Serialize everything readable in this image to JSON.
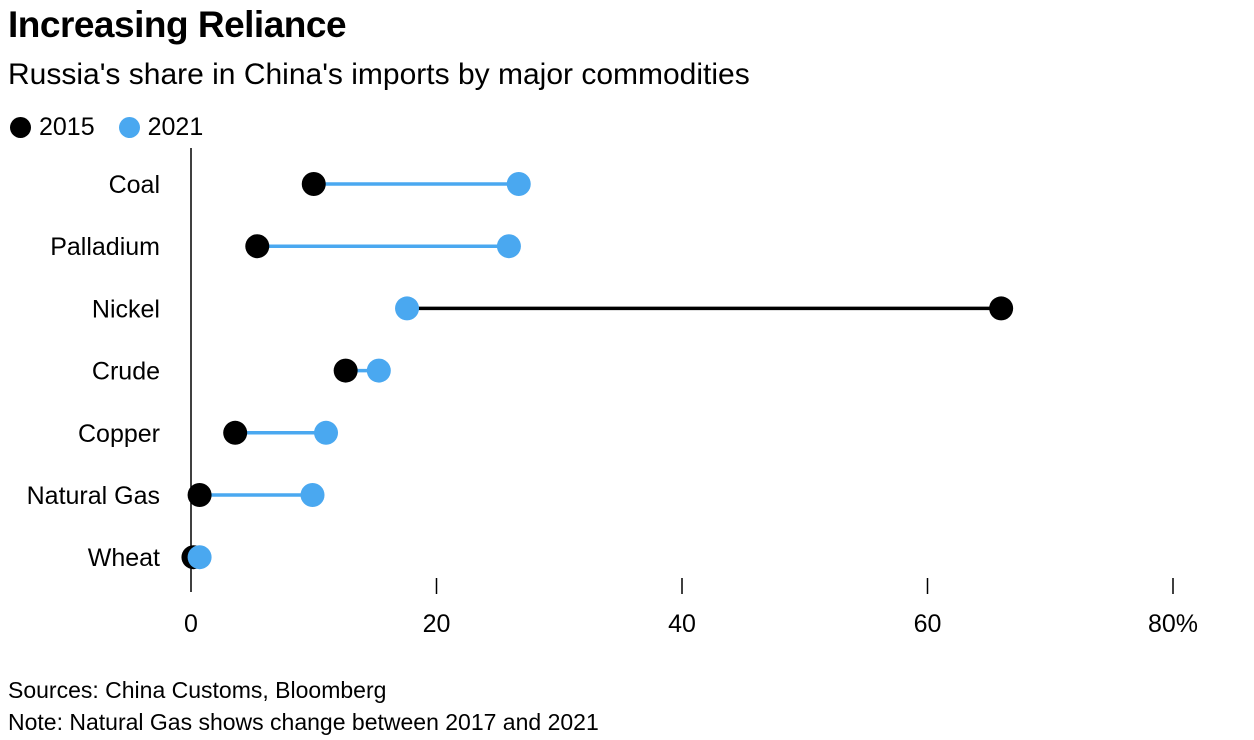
{
  "chart_data": {
    "type": "dumbbell",
    "title": "Increasing Reliance",
    "subtitle": "Russia's share in China's imports by major commodities",
    "categories": [
      "Coal",
      "Palladium",
      "Nickel",
      "Crude",
      "Copper",
      "Natural Gas",
      "Wheat"
    ],
    "series": [
      {
        "name": "2015",
        "color": "#000000",
        "values": [
          10,
          5.4,
          66,
          12.6,
          3.6,
          0.7,
          0.2
        ]
      },
      {
        "name": "2021",
        "color": "#4aa8f0",
        "values": [
          26.7,
          25.9,
          17.6,
          15.3,
          11,
          9.9,
          0.7
        ]
      }
    ],
    "x_axis": {
      "min": 0,
      "max": 80,
      "ticks": [
        0,
        20,
        40,
        60,
        80
      ],
      "tick_labels": [
        "0",
        "20",
        "40",
        "60",
        "80%"
      ]
    },
    "grid": false,
    "legend_position": "top-left"
  },
  "footer": {
    "sources": "Sources: China Customs, Bloomberg",
    "note": "Note: Natural Gas shows change between 2017 and 2021"
  }
}
